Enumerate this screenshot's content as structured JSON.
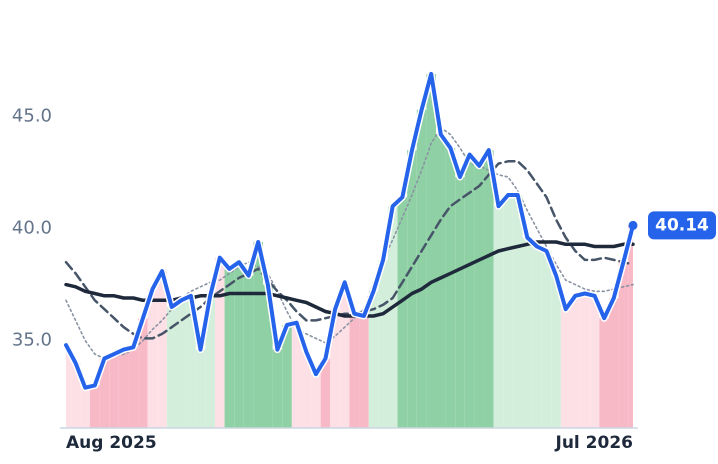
{
  "chart_data": {
    "type": "line",
    "categories": [
      "Aug 2025",
      null,
      null,
      null,
      null,
      null,
      null,
      null,
      null,
      null,
      null,
      null,
      null,
      null,
      null,
      null,
      null,
      null,
      null,
      null,
      null,
      null,
      null,
      null,
      null,
      null,
      null,
      null,
      null,
      null,
      null,
      null,
      null,
      null,
      null,
      null,
      null,
      null,
      null,
      null,
      null,
      null,
      null,
      null,
      null,
      null,
      null,
      null,
      null,
      null,
      null,
      null,
      null,
      null,
      null,
      null,
      null,
      null,
      null,
      "Jul 2026"
    ],
    "ylim": [
      31.1,
      50.2
    ],
    "yticks": [
      {
        "value": 35,
        "label": "35.0"
      },
      {
        "value": 40,
        "label": "40.0"
      },
      {
        "value": 45,
        "label": "45.0"
      }
    ],
    "series": [
      {
        "color": "#2563eb",
        "style": "solid",
        "width": 4,
        "values": [
          34.8,
          34.0,
          32.9,
          33.0,
          34.2,
          34.4,
          34.6,
          34.7,
          36.0,
          37.3,
          38.1,
          36.5,
          36.8,
          37.0,
          34.6,
          37.0,
          38.7,
          38.2,
          38.5,
          37.9,
          39.4,
          37.5,
          34.6,
          35.7,
          35.8,
          34.5,
          33.5,
          34.2,
          36.4,
          37.6,
          36.2,
          36.1,
          37.2,
          38.6,
          41.0,
          41.4,
          43.5,
          45.3,
          46.9,
          44.2,
          43.6,
          42.3,
          43.3,
          42.8,
          43.5,
          41.0,
          41.5,
          41.5,
          39.6,
          39.2,
          39.0,
          37.9,
          36.4,
          37.0,
          37.1,
          37.0,
          36.0,
          36.9,
          38.5,
          40.14
        ],
        "area_colors": [
          "#fde0e5",
          "#fde0e5",
          "#fde0e5",
          "#f8b9c6",
          "#f8b9c6",
          "#f8b9c6",
          "#f8b9c6",
          "#f8b9c6",
          "#f8b9c6",
          "#fde0e5",
          "#fde0e5",
          "#d3eedb",
          "#d3eedb",
          "#d3eedb",
          "#d3eedb",
          "#d3eedb",
          "#fde0e5",
          "#8fd1a4",
          "#8fd1a4",
          "#8fd1a4",
          "#8fd1a4",
          "#8fd1a4",
          "#8fd1a4",
          "#8fd1a4",
          "#fde0e5",
          "#fde0e5",
          "#fde0e5",
          "#f8b9c6",
          "#fde0e5",
          "#fde0e5",
          "#f8b9c6",
          "#f8b9c6",
          "#d3eedb",
          "#d3eedb",
          "#d3eedb",
          "#8fd1a4",
          "#8fd1a4",
          "#8fd1a4",
          "#8fd1a4",
          "#8fd1a4",
          "#8fd1a4",
          "#8fd1a4",
          "#8fd1a4",
          "#8fd1a4",
          "#8fd1a4",
          "#d3eedb",
          "#d3eedb",
          "#d3eedb",
          "#d3eedb",
          "#d3eedb",
          "#d3eedb",
          "#d3eedb",
          "#fde0e5",
          "#fde0e5",
          "#fde0e5",
          "#fde0e5",
          "#f8b9c6",
          "#f8b9c6",
          "#f8b9c6",
          "#f8b9c6"
        ]
      },
      {
        "color": "#1e293b",
        "style": "solid",
        "width": 3.5,
        "values": [
          37.5,
          37.4,
          37.2,
          37.1,
          37.0,
          37.0,
          36.9,
          36.9,
          36.8,
          36.8,
          36.8,
          36.8,
          36.9,
          36.9,
          37.0,
          37.0,
          37.0,
          37.1,
          37.1,
          37.1,
          37.1,
          37.1,
          37.0,
          36.9,
          36.8,
          36.7,
          36.5,
          36.3,
          36.2,
          36.1,
          36.1,
          36.1,
          36.1,
          36.2,
          36.5,
          36.8,
          37.1,
          37.3,
          37.6,
          37.8,
          38.0,
          38.2,
          38.4,
          38.6,
          38.8,
          39.0,
          39.1,
          39.2,
          39.3,
          39.4,
          39.4,
          39.4,
          39.3,
          39.3,
          39.3,
          39.2,
          39.2,
          39.2,
          39.3,
          39.3
        ]
      },
      {
        "color": "#475569",
        "style": "dashed",
        "width": 2.5,
        "values": [
          38.5,
          38.0,
          37.4,
          36.8,
          36.4,
          36.0,
          35.6,
          35.3,
          35.1,
          35.1,
          35.3,
          35.6,
          35.9,
          36.2,
          36.5,
          36.9,
          37.2,
          37.5,
          37.8,
          38.0,
          38.2,
          37.7,
          37.2,
          36.8,
          36.3,
          35.9,
          35.9,
          36.0,
          36.1,
          36.2,
          36.2,
          36.3,
          36.4,
          36.6,
          36.9,
          37.6,
          38.3,
          39.0,
          39.7,
          40.4,
          41.0,
          41.3,
          41.6,
          41.9,
          42.4,
          42.9,
          43.0,
          43.0,
          42.6,
          42.0,
          41.4,
          40.4,
          39.6,
          39.0,
          38.6,
          38.6,
          38.7,
          38.6,
          38.5,
          38.4
        ]
      },
      {
        "color": "#8a93a3",
        "style": "dotted",
        "width": 1.6,
        "values": [
          36.8,
          35.9,
          35.0,
          34.4,
          34.2,
          34.3,
          34.4,
          34.6,
          35.0,
          35.5,
          35.9,
          36.4,
          36.9,
          37.2,
          37.4,
          37.6,
          37.7,
          38.0,
          38.3,
          38.5,
          38.3,
          38.0,
          37.2,
          36.3,
          35.5,
          35.3,
          35.1,
          34.9,
          35.2,
          35.6,
          36.0,
          36.4,
          37.6,
          38.6,
          39.5,
          40.5,
          41.5,
          42.6,
          43.8,
          44.5,
          44.2,
          43.6,
          42.9,
          42.8,
          42.6,
          42.4,
          42.3,
          41.7,
          40.8,
          40.0,
          39.2,
          38.4,
          37.7,
          37.5,
          37.3,
          37.2,
          37.2,
          37.3,
          37.4,
          37.5
        ]
      }
    ]
  }
}
